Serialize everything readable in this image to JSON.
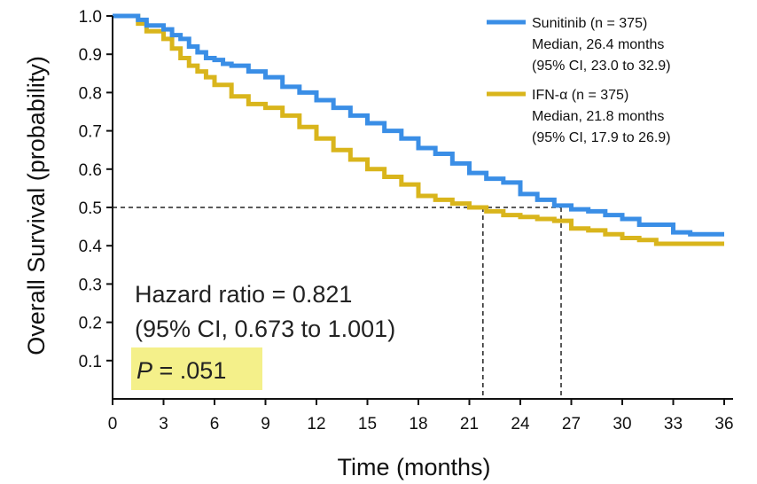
{
  "chart_data": {
    "type": "line",
    "subtype": "kaplan-meier step",
    "xlabel": "Time (months)",
    "ylabel": "Overall Survival (probability)",
    "xlim": [
      0,
      36
    ],
    "ylim": [
      0,
      1.0
    ],
    "x_ticks": [
      "0",
      "3",
      "6",
      "9",
      "12",
      "15",
      "18",
      "21",
      "24",
      "27",
      "30",
      "33",
      "36"
    ],
    "y_ticks": [
      "0.1",
      "0.2",
      "0.3",
      "0.4",
      "0.5",
      "0.6",
      "0.7",
      "0.8",
      "0.9",
      "1.0"
    ],
    "grid": false,
    "legend_position": "top-right",
    "series": [
      {
        "name": "Sunitinib (n = 375)",
        "legend_lines": [
          "Sunitinib (n = 375)",
          "Median, 26.4 months",
          "(95% CI, 23.0 to 32.9)"
        ],
        "color": "#3a8ee6",
        "x": [
          0,
          1,
          1.5,
          2,
          3,
          3.5,
          4,
          4.5,
          5,
          5.5,
          6,
          6.5,
          7,
          8,
          9,
          10,
          11,
          12,
          13,
          14,
          15,
          16,
          17,
          18,
          19,
          20,
          21,
          22,
          23,
          24,
          25,
          26,
          27,
          28,
          29,
          30,
          31,
          32,
          33,
          34,
          35,
          36
        ],
        "y": [
          1.0,
          1.0,
          0.99,
          0.975,
          0.965,
          0.95,
          0.94,
          0.92,
          0.905,
          0.89,
          0.885,
          0.875,
          0.87,
          0.855,
          0.84,
          0.815,
          0.8,
          0.78,
          0.76,
          0.74,
          0.72,
          0.7,
          0.68,
          0.655,
          0.64,
          0.615,
          0.59,
          0.575,
          0.565,
          0.535,
          0.52,
          0.505,
          0.495,
          0.49,
          0.48,
          0.47,
          0.455,
          0.455,
          0.435,
          0.43,
          0.43,
          0.43
        ]
      },
      {
        "name": "IFN-α (n = 375)",
        "legend_lines": [
          "IFN-α (n = 375)",
          "Median, 21.8 months",
          "(95% CI, 17.9 to 26.9)"
        ],
        "color": "#d9b51c",
        "x": [
          0,
          1,
          1.5,
          2,
          3,
          3.5,
          4,
          4.5,
          5,
          5.5,
          6,
          7,
          8,
          9,
          10,
          11,
          12,
          13,
          14,
          15,
          16,
          17,
          18,
          19,
          20,
          21,
          22,
          23,
          24,
          25,
          26,
          27,
          28,
          29,
          30,
          31,
          32,
          33,
          34,
          35,
          36
        ],
        "y": [
          1.0,
          1.0,
          0.98,
          0.96,
          0.94,
          0.915,
          0.89,
          0.87,
          0.855,
          0.84,
          0.82,
          0.79,
          0.77,
          0.76,
          0.74,
          0.71,
          0.68,
          0.65,
          0.625,
          0.6,
          0.58,
          0.56,
          0.53,
          0.52,
          0.51,
          0.5,
          0.49,
          0.48,
          0.475,
          0.47,
          0.465,
          0.445,
          0.44,
          0.43,
          0.42,
          0.415,
          0.405,
          0.405,
          0.405,
          0.405,
          0.405
        ]
      }
    ],
    "reference_lines": {
      "median_y": 0.5,
      "medians_x": [
        21.8,
        26.4
      ]
    },
    "annotations": {
      "hr_line1": "Hazard ratio = 0.821",
      "hr_line2": "(95% CI, 0.673 to 1.001)",
      "p_label": "P",
      "p_value": " = .051",
      "p_highlight_color": "#f4f08a"
    }
  }
}
